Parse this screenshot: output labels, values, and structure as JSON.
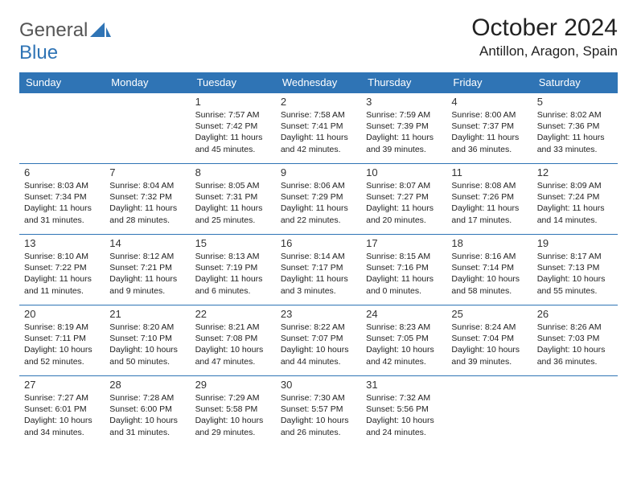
{
  "logo": {
    "text1": "General",
    "text2": "Blue"
  },
  "title": "October 2024",
  "location": "Antillon, Aragon, Spain",
  "colors": {
    "accent": "#2f74b5",
    "text": "#222222",
    "bg": "#ffffff"
  },
  "weekdays": [
    "Sunday",
    "Monday",
    "Tuesday",
    "Wednesday",
    "Thursday",
    "Friday",
    "Saturday"
  ],
  "weeks": [
    [
      null,
      null,
      {
        "n": "1",
        "sr": "Sunrise: 7:57 AM",
        "ss": "Sunset: 7:42 PM",
        "d1": "Daylight: 11 hours",
        "d2": "and 45 minutes."
      },
      {
        "n": "2",
        "sr": "Sunrise: 7:58 AM",
        "ss": "Sunset: 7:41 PM",
        "d1": "Daylight: 11 hours",
        "d2": "and 42 minutes."
      },
      {
        "n": "3",
        "sr": "Sunrise: 7:59 AM",
        "ss": "Sunset: 7:39 PM",
        "d1": "Daylight: 11 hours",
        "d2": "and 39 minutes."
      },
      {
        "n": "4",
        "sr": "Sunrise: 8:00 AM",
        "ss": "Sunset: 7:37 PM",
        "d1": "Daylight: 11 hours",
        "d2": "and 36 minutes."
      },
      {
        "n": "5",
        "sr": "Sunrise: 8:02 AM",
        "ss": "Sunset: 7:36 PM",
        "d1": "Daylight: 11 hours",
        "d2": "and 33 minutes."
      }
    ],
    [
      {
        "n": "6",
        "sr": "Sunrise: 8:03 AM",
        "ss": "Sunset: 7:34 PM",
        "d1": "Daylight: 11 hours",
        "d2": "and 31 minutes."
      },
      {
        "n": "7",
        "sr": "Sunrise: 8:04 AM",
        "ss": "Sunset: 7:32 PM",
        "d1": "Daylight: 11 hours",
        "d2": "and 28 minutes."
      },
      {
        "n": "8",
        "sr": "Sunrise: 8:05 AM",
        "ss": "Sunset: 7:31 PM",
        "d1": "Daylight: 11 hours",
        "d2": "and 25 minutes."
      },
      {
        "n": "9",
        "sr": "Sunrise: 8:06 AM",
        "ss": "Sunset: 7:29 PM",
        "d1": "Daylight: 11 hours",
        "d2": "and 22 minutes."
      },
      {
        "n": "10",
        "sr": "Sunrise: 8:07 AM",
        "ss": "Sunset: 7:27 PM",
        "d1": "Daylight: 11 hours",
        "d2": "and 20 minutes."
      },
      {
        "n": "11",
        "sr": "Sunrise: 8:08 AM",
        "ss": "Sunset: 7:26 PM",
        "d1": "Daylight: 11 hours",
        "d2": "and 17 minutes."
      },
      {
        "n": "12",
        "sr": "Sunrise: 8:09 AM",
        "ss": "Sunset: 7:24 PM",
        "d1": "Daylight: 11 hours",
        "d2": "and 14 minutes."
      }
    ],
    [
      {
        "n": "13",
        "sr": "Sunrise: 8:10 AM",
        "ss": "Sunset: 7:22 PM",
        "d1": "Daylight: 11 hours",
        "d2": "and 11 minutes."
      },
      {
        "n": "14",
        "sr": "Sunrise: 8:12 AM",
        "ss": "Sunset: 7:21 PM",
        "d1": "Daylight: 11 hours",
        "d2": "and 9 minutes."
      },
      {
        "n": "15",
        "sr": "Sunrise: 8:13 AM",
        "ss": "Sunset: 7:19 PM",
        "d1": "Daylight: 11 hours",
        "d2": "and 6 minutes."
      },
      {
        "n": "16",
        "sr": "Sunrise: 8:14 AM",
        "ss": "Sunset: 7:17 PM",
        "d1": "Daylight: 11 hours",
        "d2": "and 3 minutes."
      },
      {
        "n": "17",
        "sr": "Sunrise: 8:15 AM",
        "ss": "Sunset: 7:16 PM",
        "d1": "Daylight: 11 hours",
        "d2": "and 0 minutes."
      },
      {
        "n": "18",
        "sr": "Sunrise: 8:16 AM",
        "ss": "Sunset: 7:14 PM",
        "d1": "Daylight: 10 hours",
        "d2": "and 58 minutes."
      },
      {
        "n": "19",
        "sr": "Sunrise: 8:17 AM",
        "ss": "Sunset: 7:13 PM",
        "d1": "Daylight: 10 hours",
        "d2": "and 55 minutes."
      }
    ],
    [
      {
        "n": "20",
        "sr": "Sunrise: 8:19 AM",
        "ss": "Sunset: 7:11 PM",
        "d1": "Daylight: 10 hours",
        "d2": "and 52 minutes."
      },
      {
        "n": "21",
        "sr": "Sunrise: 8:20 AM",
        "ss": "Sunset: 7:10 PM",
        "d1": "Daylight: 10 hours",
        "d2": "and 50 minutes."
      },
      {
        "n": "22",
        "sr": "Sunrise: 8:21 AM",
        "ss": "Sunset: 7:08 PM",
        "d1": "Daylight: 10 hours",
        "d2": "and 47 minutes."
      },
      {
        "n": "23",
        "sr": "Sunrise: 8:22 AM",
        "ss": "Sunset: 7:07 PM",
        "d1": "Daylight: 10 hours",
        "d2": "and 44 minutes."
      },
      {
        "n": "24",
        "sr": "Sunrise: 8:23 AM",
        "ss": "Sunset: 7:05 PM",
        "d1": "Daylight: 10 hours",
        "d2": "and 42 minutes."
      },
      {
        "n": "25",
        "sr": "Sunrise: 8:24 AM",
        "ss": "Sunset: 7:04 PM",
        "d1": "Daylight: 10 hours",
        "d2": "and 39 minutes."
      },
      {
        "n": "26",
        "sr": "Sunrise: 8:26 AM",
        "ss": "Sunset: 7:03 PM",
        "d1": "Daylight: 10 hours",
        "d2": "and 36 minutes."
      }
    ],
    [
      {
        "n": "27",
        "sr": "Sunrise: 7:27 AM",
        "ss": "Sunset: 6:01 PM",
        "d1": "Daylight: 10 hours",
        "d2": "and 34 minutes."
      },
      {
        "n": "28",
        "sr": "Sunrise: 7:28 AM",
        "ss": "Sunset: 6:00 PM",
        "d1": "Daylight: 10 hours",
        "d2": "and 31 minutes."
      },
      {
        "n": "29",
        "sr": "Sunrise: 7:29 AM",
        "ss": "Sunset: 5:58 PM",
        "d1": "Daylight: 10 hours",
        "d2": "and 29 minutes."
      },
      {
        "n": "30",
        "sr": "Sunrise: 7:30 AM",
        "ss": "Sunset: 5:57 PM",
        "d1": "Daylight: 10 hours",
        "d2": "and 26 minutes."
      },
      {
        "n": "31",
        "sr": "Sunrise: 7:32 AM",
        "ss": "Sunset: 5:56 PM",
        "d1": "Daylight: 10 hours",
        "d2": "and 24 minutes."
      },
      null,
      null
    ]
  ]
}
